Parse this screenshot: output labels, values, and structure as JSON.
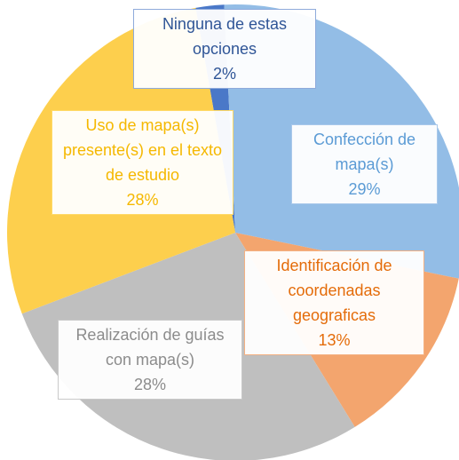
{
  "chart_data": {
    "type": "pie",
    "categories": [
      "Ninguna de estas opciones",
      "Confección de mapa(s)",
      "Identificación de coordenadas geograficas",
      "Realización de guías con mapa(s)",
      "Uso de mapa(s) presente(s) en el texto de estudio"
    ],
    "values": [
      2,
      29,
      13,
      28,
      28
    ],
    "value_labels": [
      "2%",
      "29%",
      "13%",
      "28%",
      "28%"
    ],
    "colors": [
      "#4a78c8",
      "#93bde6",
      "#f3a56e",
      "#bfbfbf",
      "#fdcf4d"
    ]
  }
}
